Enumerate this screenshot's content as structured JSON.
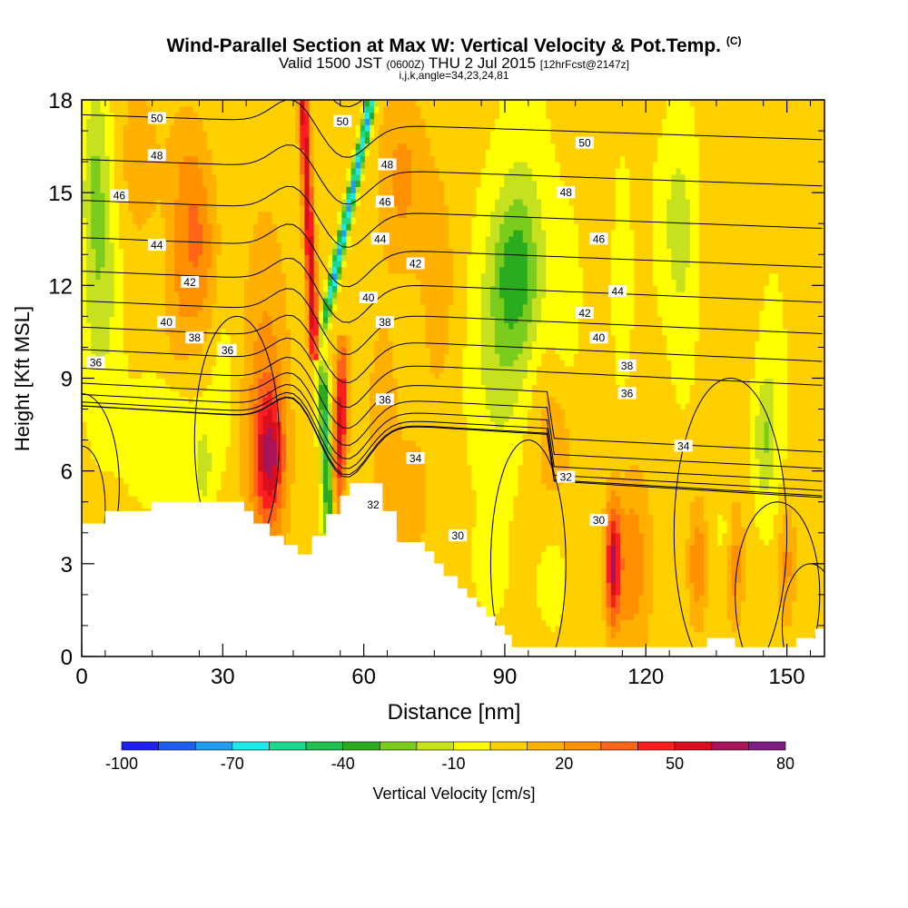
{
  "title": {
    "main": "Wind-Parallel Section at Max W: Vertical Velocity & Pot.Temp.",
    "copyright": "(C)",
    "valid_prefix": "Valid 1500 JST",
    "valid_zulu": "(0600Z)",
    "valid_date": "THU 2 Jul 2015",
    "forecast": "[12hrFcst@2147z]",
    "indices": "i,j,k,angle=34,23,24,81"
  },
  "chart_data": {
    "type": "heatmap",
    "xlabel": "Distance [nm]",
    "ylabel": "Height [Kft MSL]",
    "xlim": [
      0,
      158
    ],
    "ylim": [
      0,
      18
    ],
    "x_ticks": [
      0,
      30,
      60,
      90,
      120,
      150
    ],
    "y_ticks": [
      0,
      3,
      6,
      9,
      12,
      15,
      18
    ],
    "colorbar": {
      "label": "Vertical Velocity [cm/s]",
      "tick_labels": [
        "-100",
        "-70",
        "-40",
        "-10",
        "20",
        "50",
        "80"
      ],
      "tick_values": [
        -100,
        -70,
        -40,
        -10,
        20,
        50,
        80
      ],
      "levels": [
        -100,
        -90,
        -80,
        -70,
        -60,
        -50,
        -40,
        -30,
        -20,
        -10,
        0,
        10,
        20,
        30,
        40,
        50,
        60,
        70,
        80
      ],
      "colors": [
        "#1f1ff0",
        "#1f5ff0",
        "#1f9ff0",
        "#1fe8e8",
        "#1fd890",
        "#1fc050",
        "#2aac1e",
        "#7ccc1e",
        "#c8e11e",
        "#ffff00",
        "#ffd000",
        "#ffb000",
        "#ff9000",
        "#ff6418",
        "#ff1e1e",
        "#d80f1e",
        "#a8145a",
        "#7d1e82"
      ]
    },
    "theta_contours": {
      "unit": "Pot.Temp.",
      "labels": [
        {
          "text": "50",
          "x": 16,
          "y": 17.4
        },
        {
          "text": "48",
          "x": 16,
          "y": 16.2
        },
        {
          "text": "46",
          "x": 8,
          "y": 14.9
        },
        {
          "text": "44",
          "x": 16,
          "y": 13.3
        },
        {
          "text": "42",
          "x": 23,
          "y": 12.1
        },
        {
          "text": "40",
          "x": 18,
          "y": 10.8
        },
        {
          "text": "38",
          "x": 24,
          "y": 10.3
        },
        {
          "text": "36",
          "x": 3,
          "y": 9.5
        },
        {
          "text": "36",
          "x": 31,
          "y": 9.9
        },
        {
          "text": "50",
          "x": 55.5,
          "y": 17.3
        },
        {
          "text": "48",
          "x": 65,
          "y": 15.9
        },
        {
          "text": "46",
          "x": 64.5,
          "y": 14.7
        },
        {
          "text": "44",
          "x": 63.5,
          "y": 13.5
        },
        {
          "text": "42",
          "x": 71,
          "y": 12.7
        },
        {
          "text": "40",
          "x": 61,
          "y": 11.6
        },
        {
          "text": "38",
          "x": 64.5,
          "y": 10.8
        },
        {
          "text": "36",
          "x": 64.5,
          "y": 8.3
        },
        {
          "text": "34",
          "x": 71,
          "y": 6.4
        },
        {
          "text": "32",
          "x": 62,
          "y": 4.9
        },
        {
          "text": "30",
          "x": 80,
          "y": 3.9
        },
        {
          "text": "50",
          "x": 107,
          "y": 16.6
        },
        {
          "text": "48",
          "x": 103,
          "y": 15.0
        },
        {
          "text": "46",
          "x": 110,
          "y": 13.5
        },
        {
          "text": "44",
          "x": 114,
          "y": 11.8
        },
        {
          "text": "42",
          "x": 107,
          "y": 11.1
        },
        {
          "text": "40",
          "x": 110,
          "y": 10.3
        },
        {
          "text": "38",
          "x": 116,
          "y": 9.4
        },
        {
          "text": "36",
          "x": 116,
          "y": 8.5
        },
        {
          "text": "34",
          "x": 128,
          "y": 6.8
        },
        {
          "text": "32",
          "x": 103,
          "y": 5.8
        },
        {
          "text": "30",
          "x": 110,
          "y": 4.4
        }
      ]
    }
  }
}
